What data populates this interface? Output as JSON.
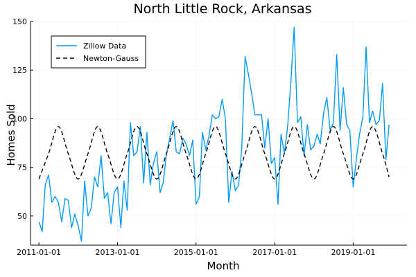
{
  "chart_data": {
    "type": "line",
    "title": "North Little Rock, Arkansas",
    "xlabel": "Month",
    "ylabel": "Homes Sold",
    "x_ticks": [
      "2011-01-01",
      "2013-01-01",
      "2015-01-01",
      "2017-01-01",
      "2019-01-01"
    ],
    "y_ticks": [
      50,
      75,
      100,
      125,
      150
    ],
    "xlim": [
      "2010-10-15",
      "2020-05-15"
    ],
    "ylim": [
      35,
      150
    ],
    "grid": true,
    "legend_position": "top-left",
    "series": [
      {
        "name": "Zillow Data",
        "color": "#009AFA",
        "style": "solid",
        "x": [
          "2011-01-01",
          "2011-02-01",
          "2011-03-01",
          "2011-04-01",
          "2011-05-01",
          "2011-06-01",
          "2011-07-01",
          "2011-08-01",
          "2011-09-01",
          "2011-10-01",
          "2011-11-01",
          "2011-12-01",
          "2012-01-01",
          "2012-02-01",
          "2012-03-01",
          "2012-04-01",
          "2012-05-01",
          "2012-06-01",
          "2012-07-01",
          "2012-08-01",
          "2012-09-01",
          "2012-10-01",
          "2012-11-01",
          "2012-12-01",
          "2013-01-01",
          "2013-02-01",
          "2013-03-01",
          "2013-04-01",
          "2013-05-01",
          "2013-06-01",
          "2013-07-01",
          "2013-08-01",
          "2013-09-01",
          "2013-10-01",
          "2013-11-01",
          "2013-12-01",
          "2014-01-01",
          "2014-02-01",
          "2014-03-01",
          "2014-04-01",
          "2014-05-01",
          "2014-06-01",
          "2014-07-01",
          "2014-08-01",
          "2014-09-01",
          "2014-10-01",
          "2014-11-01",
          "2014-12-01",
          "2015-01-01",
          "2015-02-01",
          "2015-03-01",
          "2015-04-01",
          "2015-05-01",
          "2015-06-01",
          "2015-07-01",
          "2015-08-01",
          "2015-09-01",
          "2015-10-01",
          "2015-11-01",
          "2015-12-01",
          "2016-01-01",
          "2016-02-01",
          "2016-03-01",
          "2016-04-01",
          "2016-05-01",
          "2016-06-01",
          "2016-07-01",
          "2016-08-01",
          "2016-09-01",
          "2016-10-01",
          "2016-11-01",
          "2016-12-01",
          "2017-01-01",
          "2017-02-01",
          "2017-03-01",
          "2017-04-01",
          "2017-05-01",
          "2017-06-01",
          "2017-07-01",
          "2017-08-01",
          "2017-09-01",
          "2017-10-01",
          "2017-11-01",
          "2017-12-01",
          "2018-01-01",
          "2018-02-01",
          "2018-03-01",
          "2018-04-01",
          "2018-05-01",
          "2018-06-01",
          "2018-07-01",
          "2018-08-01",
          "2018-09-01",
          "2018-10-01",
          "2018-11-01",
          "2018-12-01",
          "2019-01-01",
          "2019-02-01",
          "2019-03-01",
          "2019-04-01",
          "2019-05-01",
          "2019-06-01",
          "2019-07-01",
          "2019-08-01",
          "2019-09-01",
          "2019-10-01",
          "2019-11-01",
          "2019-12-01"
        ],
        "y": [
          47,
          42,
          66,
          71,
          57,
          60,
          57,
          47,
          59,
          58,
          44,
          51,
          45,
          37,
          68,
          50,
          54,
          70,
          65,
          81,
          59,
          62,
          46,
          62,
          65,
          44,
          68,
          53,
          98,
          81,
          83,
          96,
          67,
          93,
          66,
          77,
          83,
          62,
          67,
          82,
          90,
          99,
          83,
          82,
          90,
          87,
          81,
          89,
          56,
          60,
          93,
          84,
          91,
          102,
          100,
          101,
          110,
          100,
          57,
          73,
          63,
          66,
          85,
          132,
          123,
          113,
          102,
          102,
          102,
          85,
          100,
          77,
          80,
          56,
          92,
          82,
          96,
          119,
          147,
          98,
          101,
          81,
          97,
          84,
          86,
          92,
          87,
          103,
          111,
          94,
          98,
          133,
          94,
          116,
          97,
          94,
          65,
          80,
          92,
          101,
          137,
          98,
          104,
          97,
          99,
          118,
          79,
          97
        ]
      },
      {
        "name": "Newton-Gauss",
        "color": "#000000",
        "style": "dashed",
        "model": "A + B*sin(2*pi*(month - phase)/12)",
        "x": [
          "2011-01-01",
          "2011-04-01",
          "2011-07-01",
          "2011-10-01",
          "2012-01-01",
          "2012-04-01",
          "2012-07-01",
          "2012-10-01",
          "2013-01-01",
          "2013-04-01",
          "2013-07-01",
          "2013-10-01",
          "2014-01-01",
          "2014-04-01",
          "2014-07-01",
          "2014-10-01",
          "2015-01-01",
          "2015-04-01",
          "2015-07-01",
          "2015-10-01",
          "2016-01-01",
          "2016-04-01",
          "2016-07-01",
          "2016-10-01",
          "2017-01-01",
          "2017-04-01",
          "2017-07-01",
          "2017-10-01",
          "2018-01-01",
          "2018-04-01",
          "2018-07-01",
          "2018-10-01",
          "2019-01-01",
          "2019-04-01",
          "2019-07-01",
          "2019-10-01",
          "2019-12-01"
        ],
        "y": [
          69,
          82,
          96,
          82,
          69,
          82,
          96,
          82,
          69,
          82,
          96,
          82,
          69,
          82,
          96,
          82,
          69,
          82,
          96,
          82,
          69,
          82,
          96,
          82,
          69,
          82,
          96,
          82,
          69,
          82,
          96,
          82,
          69,
          82,
          96,
          82,
          70
        ]
      }
    ]
  }
}
